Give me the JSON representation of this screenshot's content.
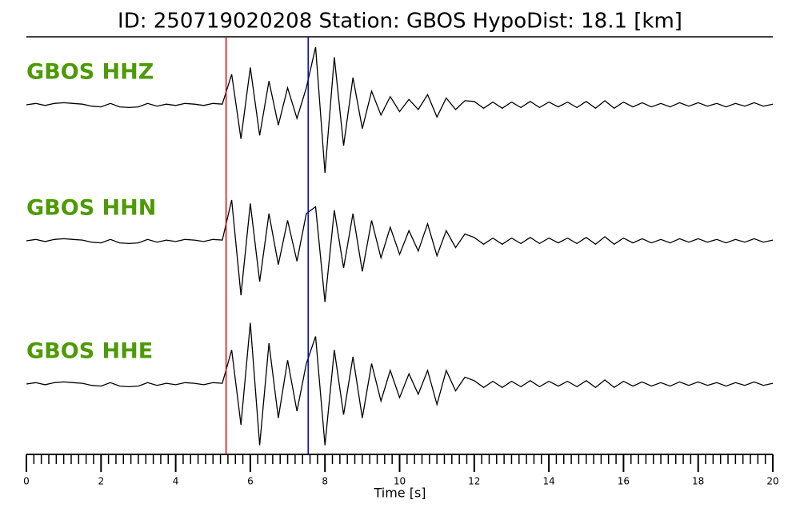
{
  "chart_data": {
    "type": "seismogram",
    "title": "ID: 250719020208   Station: GBOS   HypoDist:    18.1 [km]",
    "xlabel": "Time [s]",
    "xlim": [
      0,
      20
    ],
    "xticks": [
      0,
      2,
      4,
      6,
      8,
      10,
      12,
      14,
      16,
      18,
      20
    ],
    "xminorticks": [
      0.2,
      0.4,
      0.6,
      0.8,
      1,
      1.2,
      1.4,
      1.6,
      1.8,
      2.2,
      2.4,
      2.6,
      2.8,
      3,
      3.2,
      3.4,
      3.6,
      3.8,
      4.2,
      4.4,
      4.6,
      4.8,
      5,
      5.2,
      5.4,
      5.6,
      5.8,
      6.2,
      6.4,
      6.6,
      6.8,
      7,
      7.2,
      7.4,
      7.6,
      7.8,
      8.2,
      8.4,
      8.6,
      8.8,
      9,
      9.2,
      9.4,
      9.6,
      9.8,
      10.2,
      10.4,
      10.6,
      10.8,
      11,
      11.2,
      11.4,
      11.6,
      11.8,
      12.2,
      12.4,
      12.6,
      12.8,
      13,
      13.2,
      13.4,
      13.6,
      13.8,
      14.2,
      14.4,
      14.6,
      14.8,
      15,
      15.2,
      15.4,
      15.6,
      15.8,
      16.2,
      16.4,
      16.6,
      16.8,
      17,
      17.2,
      17.4,
      17.6,
      17.8,
      18.2,
      18.4,
      18.6,
      18.8,
      19,
      19.2,
      19.4,
      19.6,
      19.8
    ],
    "label_color": "#4e9a06",
    "picks": [
      {
        "color": "#e00000",
        "x": 5.35
      },
      {
        "color": "#0000cc",
        "x": 7.55
      }
    ],
    "x": [
      0,
      0.25,
      0.5,
      0.75,
      1,
      1.25,
      1.5,
      1.75,
      2,
      2.25,
      2.5,
      2.75,
      3,
      3.25,
      3.5,
      3.75,
      4,
      4.25,
      4.5,
      4.75,
      5,
      5.25,
      5.5,
      5.75,
      6,
      6.25,
      6.5,
      6.75,
      7,
      7.25,
      7.5,
      7.75,
      8,
      8.25,
      8.5,
      8.75,
      9,
      9.25,
      9.5,
      9.75,
      10,
      10.25,
      10.5,
      10.75,
      11,
      11.25,
      11.5,
      11.75,
      12,
      12.25,
      12.5,
      12.75,
      13,
      13.25,
      13.5,
      13.75,
      14,
      14.25,
      14.5,
      14.75,
      15,
      15.25,
      15.5,
      15.75,
      16,
      16.25,
      16.5,
      16.75,
      17,
      17.25,
      17.5,
      17.75,
      18,
      18.25,
      18.5,
      18.75,
      19,
      19.25,
      19.5,
      19.75,
      20
    ],
    "series": [
      {
        "name": "GBOS HHZ",
        "color": "#000000",
        "values": [
          0,
          0.02,
          -0.01,
          0.02,
          0.03,
          0.02,
          0.01,
          -0.02,
          -0.03,
          0.02,
          -0.03,
          -0.04,
          -0.03,
          0.02,
          -0.02,
          0.01,
          -0.01,
          0.02,
          0.01,
          -0.01,
          0.02,
          0.01,
          0.45,
          -0.5,
          0.55,
          -0.45,
          0.35,
          -0.3,
          0.25,
          -0.2,
          0.25,
          0.85,
          -1.0,
          0.7,
          -0.6,
          0.4,
          -0.35,
          0.2,
          -0.15,
          0.12,
          -0.1,
          0.08,
          -0.07,
          0.15,
          -0.18,
          0.1,
          -0.07,
          0.06,
          0.05,
          -0.05,
          0.04,
          -0.05,
          0.04,
          -0.04,
          0.05,
          -0.04,
          0.04,
          -0.03,
          0.04,
          -0.04,
          0.05,
          -0.05,
          0.06,
          -0.05,
          0.04,
          -0.03,
          0.03,
          -0.03,
          0.02,
          -0.03,
          0.03,
          -0.02,
          0.03,
          -0.02,
          0.02,
          -0.03,
          0.02,
          -0.02,
          0.03,
          -0.02,
          0.01
        ]
      },
      {
        "name": "GBOS HHN",
        "color": "#000000",
        "values": [
          0,
          0.02,
          -0.01,
          0.02,
          0.03,
          0.02,
          0.01,
          -0.02,
          -0.03,
          0.02,
          -0.03,
          -0.04,
          -0.03,
          0.02,
          -0.02,
          0.01,
          -0.01,
          0.02,
          0.01,
          -0.01,
          0.02,
          0.01,
          0.6,
          -0.8,
          0.55,
          -0.6,
          0.4,
          -0.35,
          0.3,
          -0.3,
          0.4,
          0.5,
          -0.9,
          0.45,
          -0.4,
          0.4,
          -0.45,
          0.3,
          -0.25,
          0.2,
          -0.2,
          0.15,
          -0.15,
          0.25,
          -0.22,
          0.15,
          -0.1,
          0.1,
          0.05,
          -0.05,
          0.04,
          -0.05,
          0.04,
          -0.04,
          0.05,
          -0.04,
          0.04,
          -0.03,
          0.04,
          -0.04,
          0.05,
          -0.05,
          0.06,
          -0.05,
          0.04,
          -0.03,
          0.03,
          -0.03,
          0.02,
          -0.03,
          0.03,
          -0.02,
          0.03,
          -0.02,
          0.02,
          -0.03,
          0.02,
          -0.02,
          0.03,
          -0.02,
          0.01
        ]
      },
      {
        "name": "GBOS HHE",
        "color": "#000000",
        "values": [
          0,
          0.02,
          -0.01,
          0.02,
          0.03,
          0.02,
          0.01,
          -0.02,
          -0.03,
          0.02,
          -0.03,
          -0.04,
          -0.03,
          0.02,
          -0.02,
          0.01,
          -0.01,
          0.02,
          0.01,
          -0.01,
          0.02,
          0.01,
          0.5,
          -0.6,
          0.9,
          -0.9,
          0.6,
          -0.5,
          0.35,
          -0.4,
          0.3,
          0.7,
          -0.9,
          0.5,
          -0.45,
          0.4,
          -0.5,
          0.3,
          -0.25,
          0.2,
          -0.2,
          0.15,
          -0.15,
          0.2,
          -0.3,
          0.2,
          -0.1,
          0.1,
          0.05,
          -0.05,
          0.04,
          -0.05,
          0.04,
          -0.04,
          0.05,
          -0.04,
          0.04,
          -0.03,
          0.04,
          -0.04,
          0.05,
          -0.05,
          0.06,
          -0.05,
          0.04,
          -0.03,
          0.03,
          -0.03,
          0.02,
          -0.03,
          0.03,
          -0.02,
          0.03,
          -0.02,
          0.02,
          -0.03,
          0.02,
          -0.02,
          0.03,
          -0.02,
          0.01
        ]
      }
    ]
  }
}
